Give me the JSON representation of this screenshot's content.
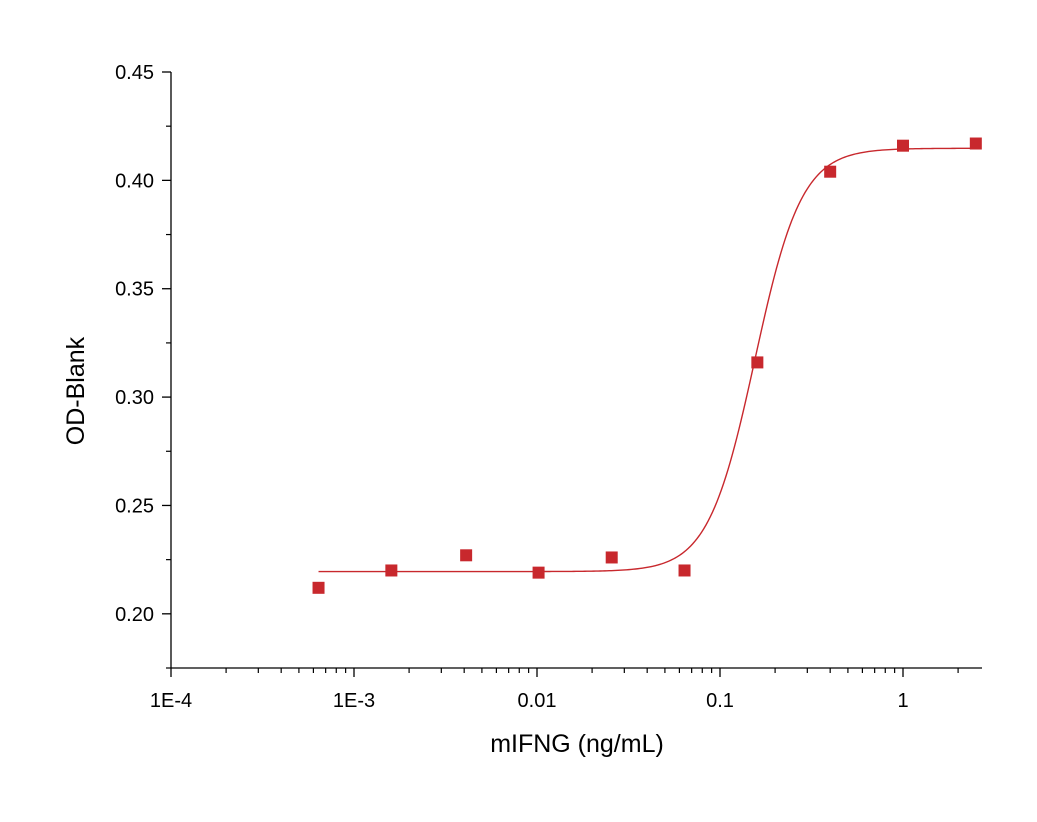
{
  "chart_data": {
    "type": "scatter",
    "title": "",
    "xlabel": "mIFNG (ng/mL)",
    "ylabel": "OD-Blank",
    "x_scale": "log10",
    "xlim": [
      0.0001,
      2.6
    ],
    "ylim": [
      0.175,
      0.45
    ],
    "x_ticks": [
      {
        "value": 0.0001,
        "label": "1E-4"
      },
      {
        "value": 0.001,
        "label": "1E-3"
      },
      {
        "value": 0.01,
        "label": "0.01"
      },
      {
        "value": 0.1,
        "label": "0.1"
      },
      {
        "value": 1,
        "label": "1"
      }
    ],
    "y_ticks": [
      {
        "value": 0.2,
        "label": "0.20"
      },
      {
        "value": 0.25,
        "label": "0.25"
      },
      {
        "value": 0.3,
        "label": "0.30"
      },
      {
        "value": 0.35,
        "label": "0.35"
      },
      {
        "value": 0.4,
        "label": "0.40"
      },
      {
        "value": 0.45,
        "label": "0.45"
      }
    ],
    "grid": false,
    "legend": "none",
    "series": [
      {
        "marker": "square",
        "color": "#c8282d",
        "x": [
          0.00064,
          0.0016,
          0.0041,
          0.0102,
          0.0256,
          0.064,
          0.16,
          0.4,
          1.0,
          2.5
        ],
        "y": [
          0.212,
          0.22,
          0.227,
          0.219,
          0.226,
          0.22,
          0.316,
          0.404,
          0.416,
          0.417
        ]
      }
    ],
    "fit": {
      "model": "4PL",
      "color": "#c8282d",
      "bottom": 0.2195,
      "top": 0.4148,
      "ec50": 0.155,
      "hill": 3.4,
      "x_range": [
        0.00064,
        2.6
      ]
    }
  }
}
